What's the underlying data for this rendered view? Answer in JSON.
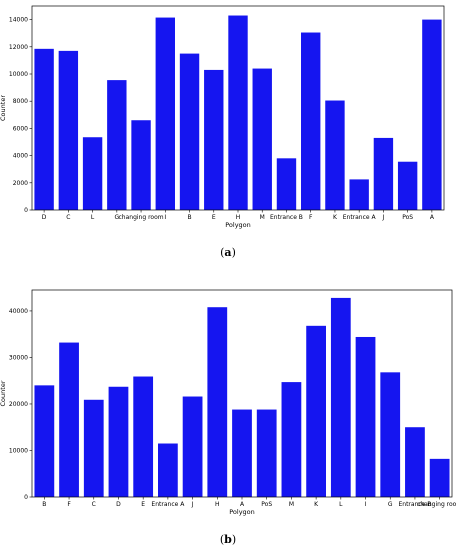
{
  "chart_data": [
    {
      "id": "a",
      "type": "bar",
      "caption": "(a)",
      "xlabel": "Polygon",
      "ylabel": "Counter",
      "categories": [
        "D",
        "C",
        "L",
        "G",
        "changing room",
        "I",
        "B",
        "E",
        "H",
        "M",
        "Entrance B",
        "F",
        "K",
        "Entrance A",
        "J",
        "PoS",
        "A"
      ],
      "values": [
        11850,
        11700,
        5350,
        9550,
        6600,
        14150,
        11500,
        10300,
        14300,
        10400,
        3800,
        13050,
        8050,
        2250,
        5300,
        3550,
        14000
      ],
      "ylim": [
        0,
        15000
      ],
      "yticks": [
        0,
        2000,
        4000,
        6000,
        8000,
        10000,
        12000,
        14000
      ],
      "bar_color": "#1515f0",
      "grid": false
    },
    {
      "id": "b",
      "type": "bar",
      "caption": "(b)",
      "xlabel": "Polygon",
      "ylabel": "Counter",
      "categories": [
        "B",
        "F",
        "C",
        "D",
        "E",
        "Entrance A",
        "J",
        "H",
        "A",
        "PoS",
        "M",
        "K",
        "L",
        "I",
        "G",
        "Entrance B",
        "changing room"
      ],
      "values": [
        24000,
        33200,
        20900,
        23700,
        25900,
        11500,
        21600,
        40800,
        18800,
        18800,
        24700,
        36800,
        42800,
        34400,
        26800,
        15000,
        8200
      ],
      "ylim": [
        0,
        44500
      ],
      "yticks": [
        0,
        10000,
        20000,
        30000,
        40000
      ],
      "bar_color": "#1515f0",
      "grid": false
    }
  ]
}
